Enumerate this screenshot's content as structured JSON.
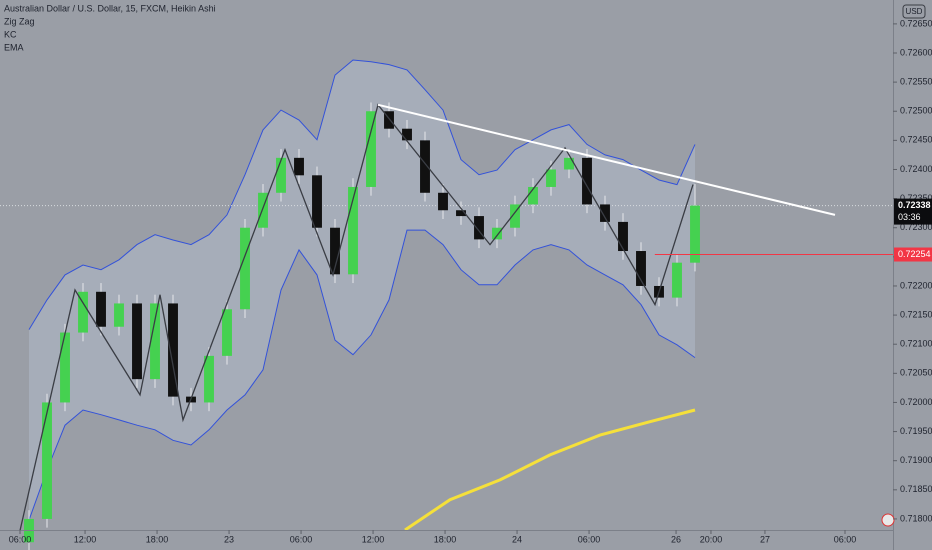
{
  "chart_data": {
    "type": "candlestick",
    "title": "Australian Dollar / U.S. Dollar, 15, FXCM, Heikin Ashi",
    "currency": "USD",
    "countdown": "03:36",
    "up_color": "#45d150",
    "down_color": "#111111",
    "x": [
      0.75,
      2.25,
      3.75,
      5.25,
      6.75,
      8.25,
      9.75,
      11.25,
      12.75,
      14.25,
      15.75,
      17.25,
      18.75,
      20.25,
      21.75,
      23.25,
      24.75,
      26.25,
      27.75,
      29.25,
      30.75,
      32.25,
      33.75,
      35.25,
      36.75,
      38.25,
      39.75,
      41.25,
      42.75,
      44.25,
      45.75,
      47.25,
      48.75,
      50.25,
      51.75,
      53.25,
      54.75,
      56.25
    ],
    "open": [
      0.7176,
      0.718,
      0.72,
      0.7212,
      0.7219,
      0.7213,
      0.7217,
      0.7204,
      0.7217,
      0.7201,
      0.72,
      0.7208,
      0.7216,
      0.723,
      0.7236,
      0.7242,
      0.7239,
      0.723,
      0.7222,
      0.7237,
      0.725,
      0.7247,
      0.7245,
      0.7236,
      0.7233,
      0.7232,
      0.7228,
      0.723,
      0.7234,
      0.7237,
      0.724,
      0.7242,
      0.7234,
      0.7231,
      0.7226,
      0.722,
      0.7218,
      0.7224
    ],
    "high": [
      0.71815,
      0.72015,
      0.72135,
      0.72205,
      0.72205,
      0.72185,
      0.72185,
      0.72185,
      0.72185,
      0.72025,
      0.72095,
      0.72175,
      0.72315,
      0.72375,
      0.72435,
      0.72435,
      0.72405,
      0.72315,
      0.72385,
      0.72515,
      0.72515,
      0.72485,
      0.72465,
      0.72375,
      0.72345,
      0.72335,
      0.72315,
      0.72355,
      0.72385,
      0.72415,
      0.72435,
      0.72435,
      0.72355,
      0.72325,
      0.72275,
      0.72215,
      0.72255,
      0.72375
    ],
    "low": [
      0.71745,
      0.71785,
      0.71985,
      0.72105,
      0.72115,
      0.72115,
      0.72025,
      0.72025,
      0.71995,
      0.71985,
      0.71985,
      0.72065,
      0.72145,
      0.72285,
      0.72345,
      0.72375,
      0.72285,
      0.72205,
      0.72205,
      0.72355,
      0.72455,
      0.72435,
      0.72345,
      0.72315,
      0.72305,
      0.72265,
      0.72265,
      0.72285,
      0.72325,
      0.72355,
      0.72385,
      0.72325,
      0.72295,
      0.72245,
      0.72185,
      0.72165,
      0.72165,
      0.72225
    ],
    "close": [
      0.718,
      0.72,
      0.7212,
      0.7219,
      0.7213,
      0.7217,
      0.7204,
      0.7217,
      0.7201,
      0.72,
      0.7208,
      0.7216,
      0.723,
      0.7236,
      0.7242,
      0.7239,
      0.723,
      0.7222,
      0.7237,
      0.725,
      0.7247,
      0.7245,
      0.7236,
      0.7233,
      0.7232,
      0.7228,
      0.723,
      0.7234,
      0.7237,
      0.724,
      0.7242,
      0.7234,
      0.7231,
      0.7226,
      0.722,
      0.7218,
      0.7224,
      0.72338
    ],
    "indicators": [
      {
        "name": "Zig Zag",
        "type": "line",
        "color": "#3a3d44",
        "x": [
          0,
          4.58,
          10.0,
          11.67,
          13.58,
          22.08,
          26.08,
          29.83,
          39.17,
          45.42,
          52.92,
          56.08
        ],
        "values": [
          0.7178,
          0.72193,
          0.72013,
          0.72185,
          0.7197,
          0.72434,
          0.72219,
          0.72511,
          0.72271,
          0.72437,
          0.72168,
          0.72374
        ]
      },
      {
        "name": "KC",
        "type": "band",
        "color": "#3352d9",
        "upper": [
          0.72125,
          0.72176,
          0.72219,
          0.72236,
          0.72228,
          0.72245,
          0.72271,
          0.72288,
          0.72279,
          0.72271,
          0.72288,
          0.72322,
          0.72391,
          0.72468,
          0.72502,
          0.72485,
          0.72451,
          0.72562,
          0.72588,
          0.72585,
          0.7258,
          0.72571,
          0.72537,
          0.72502,
          0.72417,
          0.72391,
          0.72399,
          0.72434,
          0.72451,
          0.72468,
          0.72477,
          0.72443,
          0.72425,
          0.72417,
          0.72399,
          0.72382,
          0.72374,
          0.72443
        ],
        "lower": [
          0.71798,
          0.71884,
          0.71961,
          0.71987,
          0.71979,
          0.7197,
          0.71961,
          0.71953,
          0.71935,
          0.71927,
          0.71953,
          0.71987,
          0.72013,
          0.72056,
          0.72193,
          0.72262,
          0.72219,
          0.72107,
          0.72082,
          0.72116,
          0.72176,
          0.72296,
          0.72296,
          0.72271,
          0.72228,
          0.72202,
          0.72202,
          0.72236,
          0.72262,
          0.72271,
          0.72262,
          0.72236,
          0.72219,
          0.72202,
          0.72168,
          0.72116,
          0.72099,
          0.72077
        ]
      },
      {
        "name": "EMA",
        "type": "line",
        "color": "#f5e03a",
        "x": [
          32.08,
          35.83,
          40.0,
          44.17,
          48.33,
          52.5,
          56.25
        ],
        "values": [
          0.71781,
          0.71833,
          0.71867,
          0.7191,
          0.71944,
          0.71967,
          0.71987
        ]
      }
    ],
    "trendlines": [
      {
        "color": "#ffffff",
        "x": [
          29.83,
          67.92
        ],
        "values": [
          0.72511,
          0.72322
        ]
      }
    ],
    "hlines": [
      {
        "value": 0.72254,
        "label": "0.72254",
        "color": "#f23645"
      }
    ],
    "last_price": {
      "value": 0.72338,
      "label": "0.72338"
    },
    "xlim": [
      -1.667,
      72.75
    ],
    "ylim": [
      0.71781,
      0.72691
    ],
    "xticks": [
      {
        "value": 0,
        "label": "06:00"
      },
      {
        "value": 5.42,
        "label": "12:00"
      },
      {
        "value": 11.42,
        "label": "18:00"
      },
      {
        "value": 17.42,
        "label": "23"
      },
      {
        "value": 23.42,
        "label": "06:00"
      },
      {
        "value": 29.42,
        "label": "12:00"
      },
      {
        "value": 35.42,
        "label": "18:00"
      },
      {
        "value": 41.42,
        "label": "24"
      },
      {
        "value": 47.42,
        "label": "06:00"
      },
      {
        "value": 54.67,
        "label": "26"
      },
      {
        "value": 57.58,
        "label": "20:00"
      },
      {
        "value": 62.08,
        "label": "27"
      },
      {
        "value": 68.75,
        "label": "06:00"
      }
    ],
    "yticks": [
      {
        "value": 0.7265,
        "label": "0.72650"
      },
      {
        "value": 0.726,
        "label": "0.72600"
      },
      {
        "value": 0.7255,
        "label": "0.72550"
      },
      {
        "value": 0.725,
        "label": "0.72500"
      },
      {
        "value": 0.7245,
        "label": "0.72450"
      },
      {
        "value": 0.724,
        "label": "0.72400"
      },
      {
        "value": 0.7235,
        "label": "0.72350"
      },
      {
        "value": 0.723,
        "label": "0.72300"
      },
      {
        "value": 0.7225,
        "label": "0.72250"
      },
      {
        "value": 0.722,
        "label": "0.72200"
      },
      {
        "value": 0.7215,
        "label": "0.72150"
      },
      {
        "value": 0.721,
        "label": "0.72100"
      },
      {
        "value": 0.7205,
        "label": "0.72050"
      },
      {
        "value": 0.72,
        "label": "0.72000"
      },
      {
        "value": 0.7195,
        "label": "0.71950"
      },
      {
        "value": 0.719,
        "label": "0.71900"
      },
      {
        "value": 0.7185,
        "label": "0.71850"
      },
      {
        "value": 0.718,
        "label": "0.71800"
      }
    ]
  }
}
